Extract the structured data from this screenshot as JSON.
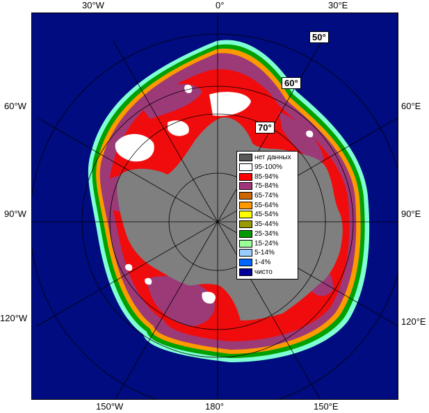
{
  "map": {
    "colors": {
      "ocean": "#000c80",
      "land": "#7f7f7f",
      "white_ice": "#ffffff",
      "high_ice": "#f00c0c",
      "mid_ice": "#9c3a78",
      "edge_orange": "#ff9900",
      "edge_green": "#00a000",
      "edge_cyan": "#7fffd4",
      "grid": "#000000"
    }
  },
  "lon_labels": {
    "top_30w": "30°W",
    "top_0": "0°",
    "top_30e": "30°E",
    "left_60w": "60°W",
    "right_60e": "60°E",
    "left_90w": "90°W",
    "right_90e": "90°E",
    "left_120w": "120°W",
    "right_120e": "120°E",
    "bottom_150w": "150°W",
    "bottom_180": "180°",
    "bottom_150e": "150°E"
  },
  "lat_labels": {
    "lat50": "50°",
    "lat60": "60°",
    "lat70": "70°"
  },
  "legend": {
    "items": [
      {
        "label": "нет данных",
        "color": "#595959"
      },
      {
        "label": "95-100%",
        "color": "#ffffff"
      },
      {
        "label": "85-94%",
        "color": "#ff0000"
      },
      {
        "label": "75-84%",
        "color": "#a0357a"
      },
      {
        "label": "65-74%",
        "color": "#cc6600"
      },
      {
        "label": "55-64%",
        "color": "#ff9900"
      },
      {
        "label": "45-54%",
        "color": "#ffff00"
      },
      {
        "label": "35-44%",
        "color": "#999900"
      },
      {
        "label": "25-34%",
        "color": "#009900"
      },
      {
        "label": "15-24%",
        "color": "#99ff99"
      },
      {
        "label": "5-14%",
        "color": "#99ccff"
      },
      {
        "label": "1-4%",
        "color": "#0066ff"
      },
      {
        "label": "чисто",
        "color": "#000099"
      }
    ]
  }
}
